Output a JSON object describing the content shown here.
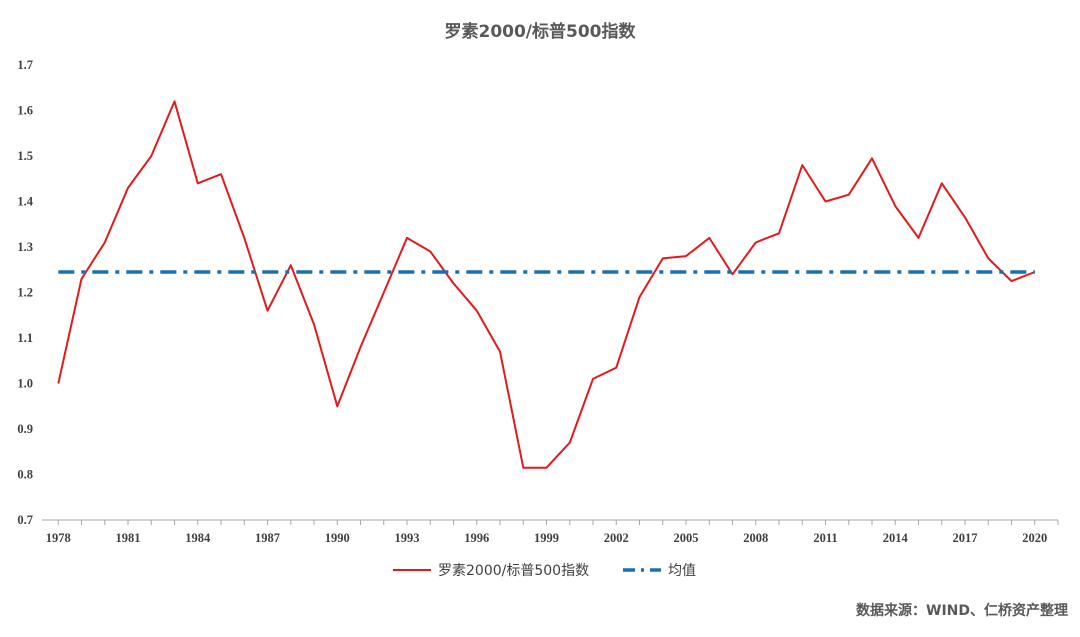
{
  "chart_data": {
    "type": "line",
    "title": "罗素2000/标普500指数",
    "xlabel": "",
    "ylabel": "",
    "x": [
      1978,
      1979,
      1980,
      1981,
      1982,
      1983,
      1984,
      1985,
      1986,
      1987,
      1988,
      1989,
      1990,
      1991,
      1992,
      1993,
      1994,
      1995,
      1996,
      1997,
      1998,
      1999,
      2000,
      2001,
      2002,
      2003,
      2004,
      2005,
      2006,
      2007,
      2008,
      2009,
      2010,
      2011,
      2012,
      2013,
      2014,
      2015,
      2016,
      2017,
      2018,
      2019,
      2020
    ],
    "xticks": [
      "1978",
      "1981",
      "1984",
      "1987",
      "1990",
      "1993",
      "1996",
      "1999",
      "2002",
      "2005",
      "2008",
      "2011",
      "2014",
      "2017",
      "2020"
    ],
    "ylim": [
      0.7,
      1.7
    ],
    "yticks": [
      "0.7",
      "0.8",
      "0.9",
      "1.0",
      "1.1",
      "1.2",
      "1.3",
      "1.4",
      "1.5",
      "1.6",
      "1.7"
    ],
    "grid": false,
    "legend_position": "bottom",
    "series": [
      {
        "name": "罗素2000/标普500指数",
        "color": "#e31a1c",
        "style": "solid",
        "values": [
          1.0,
          1.23,
          1.31,
          1.43,
          1.5,
          1.62,
          1.44,
          1.46,
          1.32,
          1.16,
          1.26,
          1.13,
          0.95,
          1.08,
          1.2,
          1.32,
          1.29,
          1.22,
          1.16,
          1.07,
          0.815,
          0.815,
          0.87,
          1.01,
          1.035,
          1.19,
          1.275,
          1.28,
          1.32,
          1.24,
          1.31,
          1.33,
          1.48,
          1.4,
          1.415,
          1.495,
          1.39,
          1.32,
          1.44,
          1.365,
          1.275,
          1.225,
          1.245
        ]
      },
      {
        "name": "均值",
        "color": "#1a6fae",
        "style": "dashdot",
        "values": [
          1.245,
          1.245,
          1.245,
          1.245,
          1.245,
          1.245,
          1.245,
          1.245,
          1.245,
          1.245,
          1.245,
          1.245,
          1.245,
          1.245,
          1.245,
          1.245,
          1.245,
          1.245,
          1.245,
          1.245,
          1.245,
          1.245,
          1.245,
          1.245,
          1.245,
          1.245,
          1.245,
          1.245,
          1.245,
          1.245,
          1.245,
          1.245,
          1.245,
          1.245,
          1.245,
          1.245,
          1.245,
          1.245,
          1.245,
          1.245,
          1.245,
          1.245,
          1.245
        ]
      }
    ]
  },
  "source_note": "数据来源：WIND、仁桥资产整理"
}
